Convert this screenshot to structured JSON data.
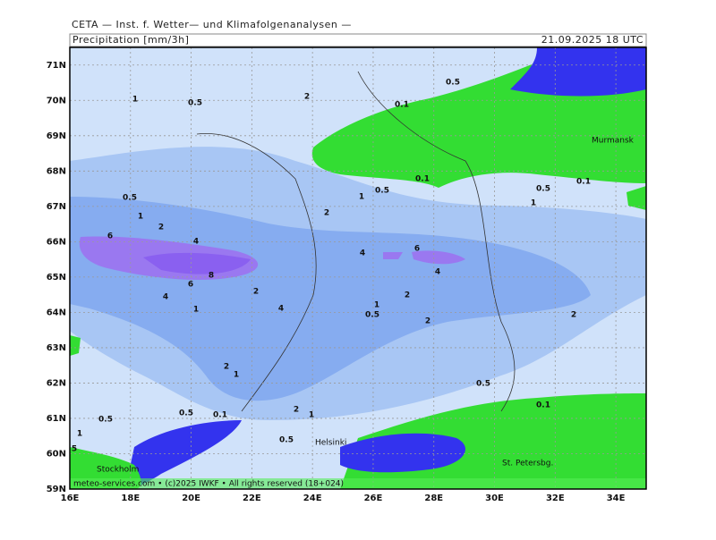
{
  "map": {
    "header": "CETA — Inst. f. Wetter— und Klimafolgenanalysen —",
    "title": "Precipitation [mm/3h]",
    "time": "21.09.2025 18 UTC",
    "footer": "meteo-services.com • (c)2025 IWKF • All rights reserved (18+024)",
    "xlim": [
      16,
      35
    ],
    "ylim": [
      59,
      71.5
    ],
    "xticks": [
      {
        "value": 16,
        "label": "16E"
      },
      {
        "value": 18,
        "label": "18E"
      },
      {
        "value": 20,
        "label": "20E"
      },
      {
        "value": 22,
        "label": "22E"
      },
      {
        "value": 24,
        "label": "24E"
      },
      {
        "value": 26,
        "label": "26E"
      },
      {
        "value": 28,
        "label": "28E"
      },
      {
        "value": 30,
        "label": "30E"
      },
      {
        "value": 32,
        "label": "32E"
      },
      {
        "value": 34,
        "label": "34E"
      }
    ],
    "yticks": [
      {
        "value": 59,
        "label": "59N"
      },
      {
        "value": 60,
        "label": "60N"
      },
      {
        "value": 61,
        "label": "61N"
      },
      {
        "value": 62,
        "label": "62N"
      },
      {
        "value": 63,
        "label": "63N"
      },
      {
        "value": 64,
        "label": "64N"
      },
      {
        "value": 65,
        "label": "65N"
      },
      {
        "value": 66,
        "label": "66N"
      },
      {
        "value": 67,
        "label": "67N"
      },
      {
        "value": 68,
        "label": "68N"
      },
      {
        "value": 69,
        "label": "69N"
      },
      {
        "value": 70,
        "label": "70N"
      },
      {
        "value": 71,
        "label": "71N"
      }
    ],
    "places": [
      "Murmansk",
      "Helsinki",
      "Stockholm",
      "St. Petersbg."
    ],
    "contour_labels": [
      1,
      0.5,
      2,
      0.5,
      0.1,
      0.1,
      0.5,
      1,
      0.5,
      0.1,
      1,
      0.5,
      1,
      2,
      2,
      6,
      4,
      4,
      6,
      4,
      8,
      6,
      4,
      2,
      2,
      1,
      4,
      1,
      0.5,
      2,
      2,
      2,
      1,
      0.5,
      0.1,
      0.5,
      0.1,
      2,
      1,
      0.5,
      1,
      0.5,
      5
    ]
  }
}
